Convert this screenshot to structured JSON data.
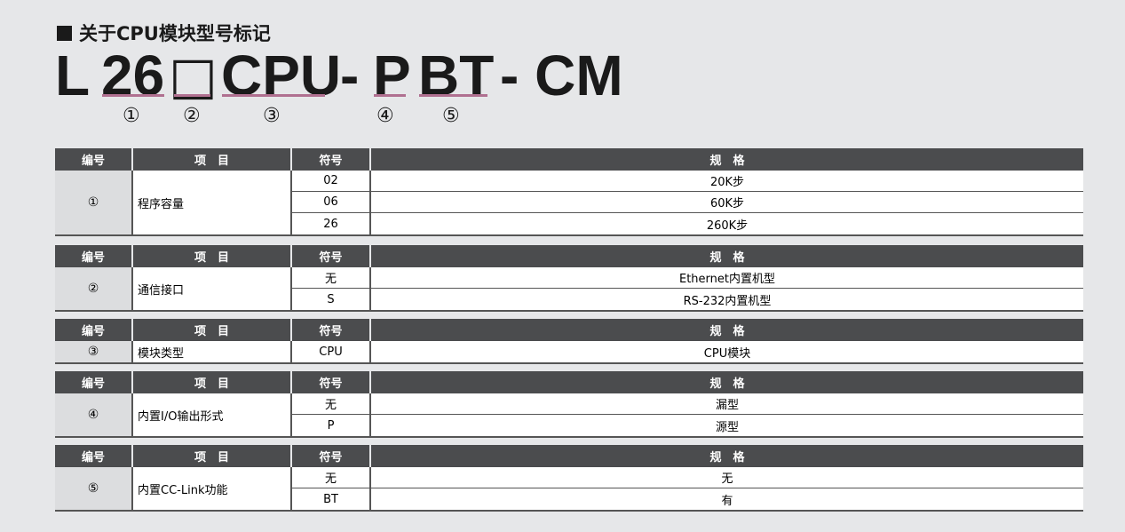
{
  "title": "关于CPU模块型号标记",
  "model": {
    "L": "L",
    "p1": "26",
    "p2": "□",
    "p3": "CPU",
    "d1": "-",
    "p4": "P",
    "p5": "BT",
    "tail": "- CM"
  },
  "markers": [
    "①",
    "②",
    "③",
    "④",
    "⑤"
  ],
  "headers": {
    "num": "编号",
    "item": "项　目",
    "symbol": "符号",
    "spec": "规　格"
  },
  "underline_color": "#b07090",
  "tables": [
    {
      "num": "①",
      "item": "程序容量",
      "rows": [
        {
          "symbol": "02",
          "spec": "20K步"
        },
        {
          "symbol": "06",
          "spec": "60K步"
        },
        {
          "symbol": "26",
          "spec": "260K步"
        }
      ]
    },
    {
      "num": "②",
      "item": "通信接口",
      "rows": [
        {
          "symbol": "无",
          "spec": "Ethernet内置机型"
        },
        {
          "symbol": "S",
          "spec": "RS-232内置机型"
        }
      ]
    },
    {
      "num": "③",
      "item": "模块类型",
      "rows": [
        {
          "symbol": "CPU",
          "spec": "CPU模块"
        }
      ]
    },
    {
      "num": "④",
      "item": "内置I/O输出形式",
      "rows": [
        {
          "symbol": "无",
          "spec": "漏型"
        },
        {
          "symbol": "P",
          "spec": "源型"
        }
      ]
    },
    {
      "num": "⑤",
      "item": "内置CC-Link功能",
      "rows": [
        {
          "symbol": "无",
          "spec": "无"
        },
        {
          "symbol": "BT",
          "spec": "有"
        }
      ]
    }
  ]
}
